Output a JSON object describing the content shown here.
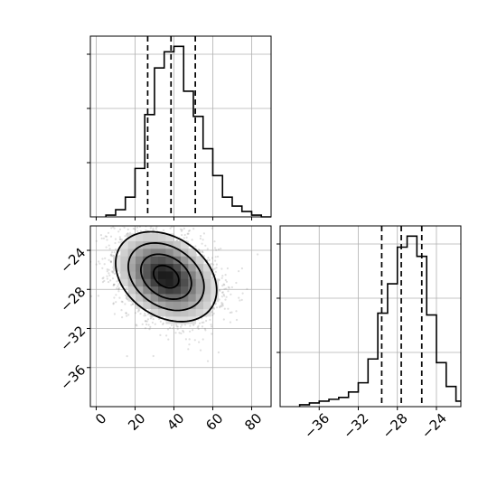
{
  "colors": {
    "background": "#ffffff",
    "line": "#000000",
    "grid": "#b0b0b0",
    "points": "#7f7f7f"
  },
  "chart_data": {
    "type": "corner",
    "grid": true,
    "parameters": [
      {
        "range": [
          -3,
          90
        ],
        "ticks": [
          0,
          20,
          40,
          60,
          80
        ],
        "tick_labels": [
          "0",
          "20",
          "40",
          "60",
          "80"
        ],
        "quantiles": [
          26.5,
          38.5,
          51
        ],
        "histogram": {
          "type": "step",
          "edges": [
            5,
            10,
            15,
            20,
            25,
            30,
            35,
            40,
            45,
            50,
            55,
            60,
            65,
            70,
            75,
            80,
            85,
            90
          ],
          "counts": [
            0.01,
            0.04,
            0.11,
            0.27,
            0.57,
            0.83,
            0.92,
            0.95,
            0.7,
            0.56,
            0.38,
            0.23,
            0.11,
            0.06,
            0.03,
            0.01,
            0
          ]
        }
      },
      {
        "range": [
          -40,
          -21.5
        ],
        "ticks": [
          -36,
          -32,
          -28,
          -24
        ],
        "tick_labels": [
          "−36",
          "−32",
          "−28",
          "−24"
        ],
        "quantiles": [
          -29.6,
          -27.6,
          -25.5
        ],
        "histogram": {
          "type": "step",
          "edges": [
            -38,
            -37,
            -36,
            -35,
            -34,
            -33,
            -32,
            -31,
            -30,
            -29,
            -28,
            -27,
            -26,
            -25,
            -24,
            -23,
            -22,
            -21.5
          ],
          "counts": [
            0.01,
            0.02,
            0.03,
            0.04,
            0.05,
            0.08,
            0.13,
            0.26,
            0.51,
            0.67,
            0.87,
            0.93,
            0.82,
            0.5,
            0.24,
            0.11,
            0.03
          ]
        }
      }
    ],
    "joint": {
      "center": [
        36,
        -26.7
      ],
      "sd": [
        13,
        2.3
      ],
      "correlation": -0.3,
      "n_points": 3000,
      "contour_levels_sigma": [
        0.5,
        1.0,
        1.5,
        2.0
      ]
    }
  }
}
